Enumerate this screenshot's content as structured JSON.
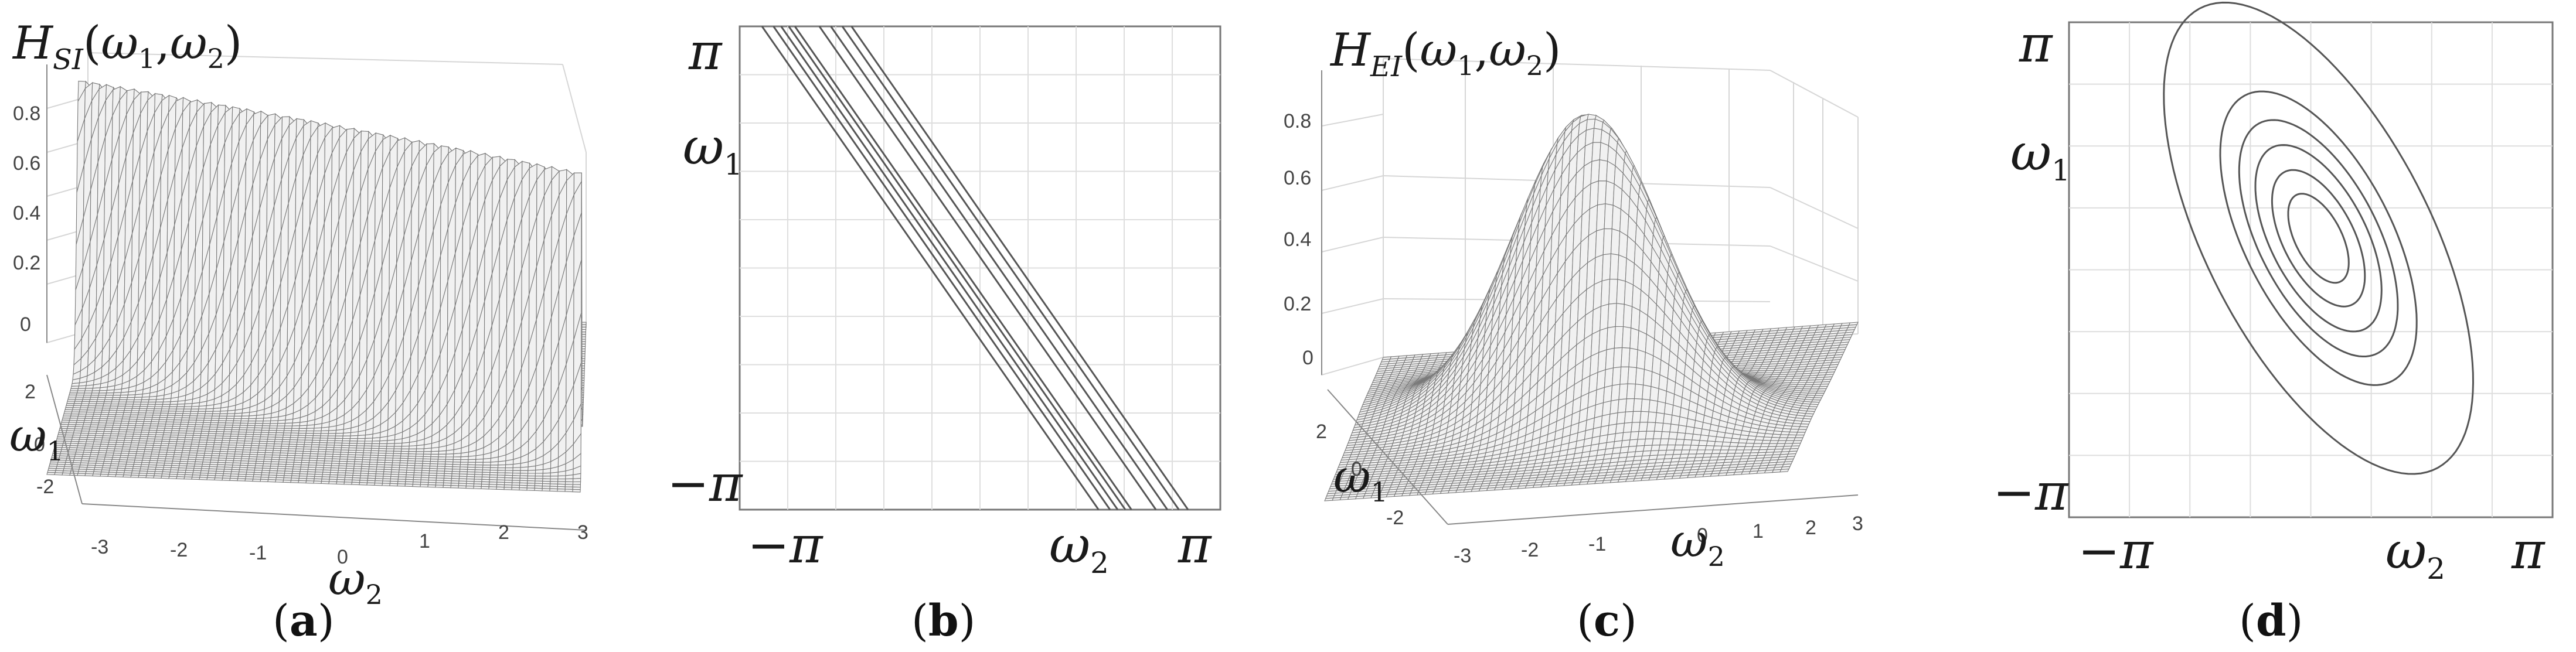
{
  "panels": [
    {
      "id": "a",
      "caption": {
        "open": "(",
        "letter": "a",
        "close": ")"
      },
      "chart_data": {
        "type": "surface",
        "title": "H_SI(ω1, ω2)",
        "z_ticks": [
          "0",
          "0.2",
          "0.4",
          "0.6",
          "0.8"
        ],
        "w1_ticks": [
          "2",
          "0",
          "-2"
        ],
        "w2_ticks": [
          "-3",
          "-2",
          "-1",
          "0",
          "1",
          "2",
          "3"
        ],
        "xlabel": "ω2",
        "ylabel": "ω1",
        "zlim": [
          0,
          1
        ],
        "peak": 1.0,
        "description_of_values": "narrow ridge of height 1 along the line ω1 + 0.55·ω2 = 0"
      }
    },
    {
      "id": "b",
      "caption": {
        "open": "(",
        "letter": "b",
        "close": ")"
      },
      "chart_data": {
        "type": "contour",
        "x_ticks": [
          "−π",
          "π"
        ],
        "y_ticks": [
          "π",
          "−π"
        ],
        "xlabel": "ω2",
        "ylabel": "ω1",
        "xlim": [
          -3.14159,
          3.14159
        ],
        "ylim": [
          -3.14159,
          3.14159
        ],
        "lines": [
          {
            "x_at_top": -2.85,
            "x_at_bottom": 1.55
          },
          {
            "x_at_top": -2.7,
            "x_at_bottom": 1.7
          },
          {
            "x_at_top": -2.6,
            "x_at_bottom": 1.8
          },
          {
            "x_at_top": -2.5,
            "x_at_bottom": 1.9
          },
          {
            "x_at_top": -2.42,
            "x_at_bottom": 1.98
          },
          {
            "x_at_top": -2.1,
            "x_at_bottom": 2.3
          },
          {
            "x_at_top": -1.95,
            "x_at_bottom": 2.45
          },
          {
            "x_at_top": -1.8,
            "x_at_bottom": 2.6
          },
          {
            "x_at_top": -1.68,
            "x_at_bottom": 2.72
          }
        ]
      }
    },
    {
      "id": "c",
      "caption": {
        "open": "(",
        "letter": "c",
        "close": ")"
      },
      "chart_data": {
        "type": "surface",
        "title": "H_EI(ω1, ω2)",
        "z_ticks": [
          "0",
          "0.2",
          "0.4",
          "0.6",
          "0.8"
        ],
        "w1_ticks": [
          "2",
          "0",
          "-2"
        ],
        "w2_ticks": [
          "-3",
          "-2",
          "-1",
          "0",
          "1",
          "2",
          "3"
        ],
        "xlabel": "ω2",
        "ylabel": "ω1",
        "zlim": [
          0,
          1
        ],
        "peak": 1.0,
        "description_of_values": "single elongated Gaussian bump of height 1 centred at (0, 0)"
      }
    },
    {
      "id": "d",
      "caption": {
        "open": "(",
        "letter": "d",
        "close": ")"
      },
      "chart_data": {
        "type": "contour",
        "x_ticks": [
          "−π",
          "π"
        ],
        "y_ticks": [
          "π",
          "−π"
        ],
        "xlabel": "ω2",
        "ylabel": "ω1",
        "xlim": [
          -3.14159,
          3.14159
        ],
        "ylim": [
          -3.14159,
          3.14159
        ],
        "ellipses": [
          {
            "center": [
              0.1,
              0.4
            ],
            "semi_major": 3.3,
            "semi_minor": 1.45,
            "angle_deg": -62
          },
          {
            "center": [
              0.1,
              0.4
            ],
            "semi_major": 2.05,
            "semi_minor": 0.95,
            "angle_deg": -62
          },
          {
            "center": [
              0.1,
              0.4
            ],
            "semi_major": 1.65,
            "semi_minor": 0.77,
            "angle_deg": -62
          },
          {
            "center": [
              0.1,
              0.4
            ],
            "semi_major": 1.3,
            "semi_minor": 0.62,
            "angle_deg": -62
          },
          {
            "center": [
              0.1,
              0.4
            ],
            "semi_major": 0.95,
            "semi_minor": 0.46,
            "angle_deg": -62
          },
          {
            "center": [
              0.1,
              0.4
            ],
            "semi_major": 0.62,
            "semi_minor": 0.3,
            "angle_deg": -62
          }
        ]
      }
    }
  ]
}
